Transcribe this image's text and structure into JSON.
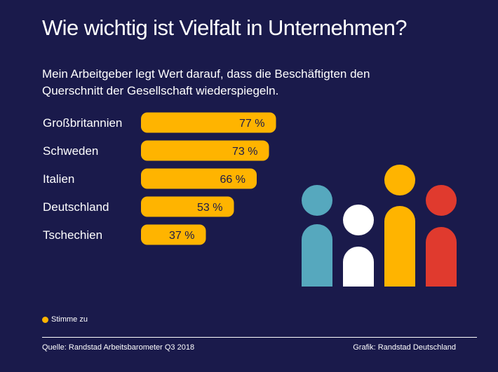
{
  "chart_data": {
    "type": "bar",
    "orientation": "horizontal",
    "title": "Wie wichtig ist Vielfalt in Unternehmen?",
    "subtitle": "Mein Arbeitgeber legt Wert darauf, dass die Beschäftigten den Querschnitt der Gesellschaft wiederspiegeln.",
    "categories": [
      "Großbritannien",
      "Schweden",
      "Italien",
      "Deutschland",
      "Tschechien"
    ],
    "values": [
      77,
      73,
      66,
      53,
      37
    ],
    "value_labels": [
      "77 %",
      "73 %",
      "66 %",
      "53 %",
      "37 %"
    ],
    "unit": "%",
    "xlim": [
      0,
      100
    ],
    "legend": [
      {
        "label": "Stimme zu",
        "color": "#ffb400"
      }
    ],
    "bar_color": "#ffb400"
  },
  "footer": {
    "source": "Quelle: Randstad Arbeitsbarometer Q3 2018",
    "credit": "Grafik: Randstad Deutschland"
  },
  "colors": {
    "background": "#1a1a4b",
    "bar": "#ffb400",
    "figure_blue": "#56a8be",
    "figure_white": "#ffffff",
    "figure_yellow": "#ffb400",
    "figure_red": "#e03a2e"
  }
}
